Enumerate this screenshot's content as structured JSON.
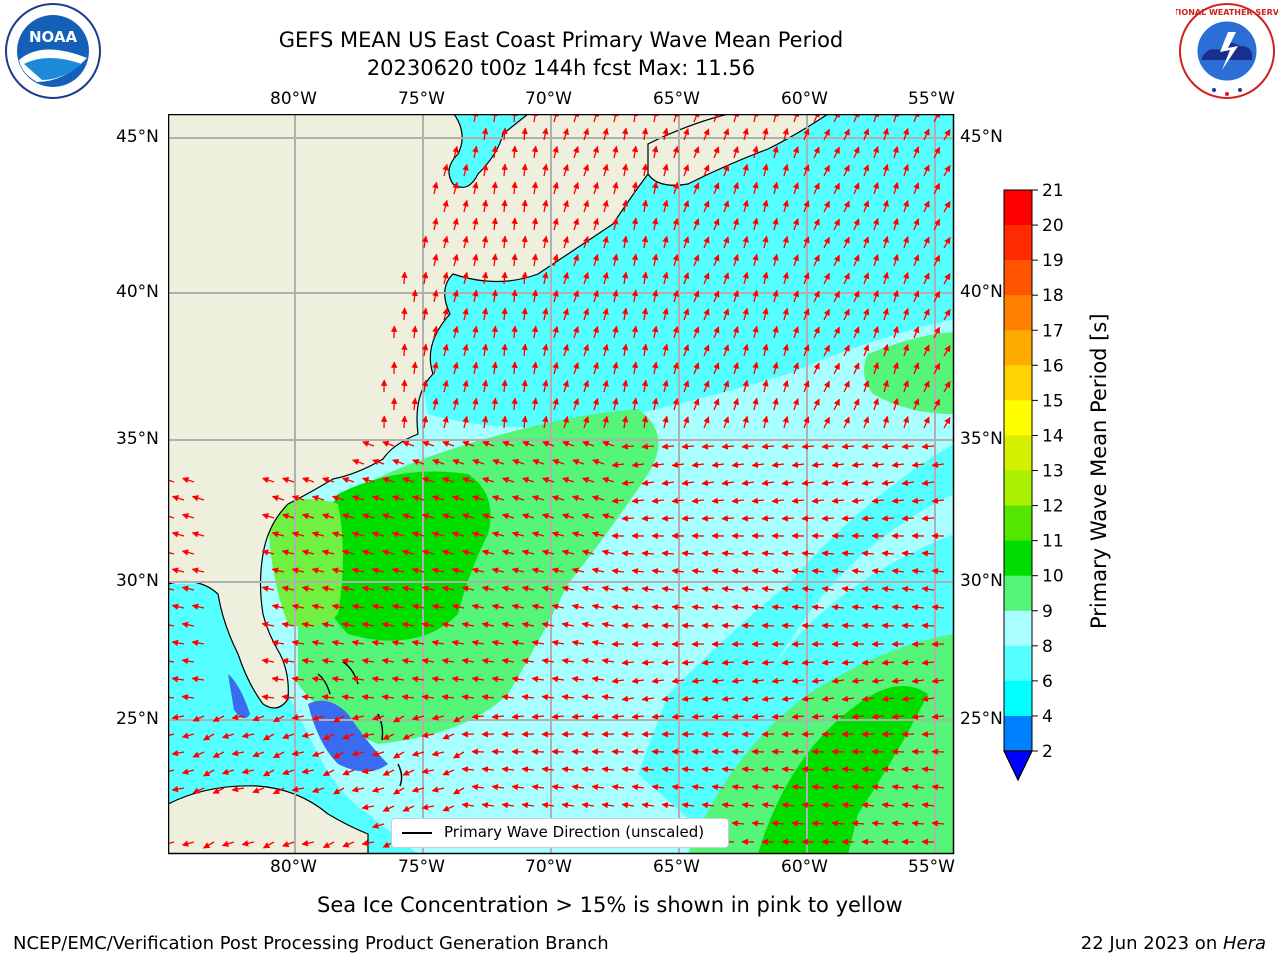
{
  "title_line1": "GEFS MEAN US East Coast Primary Wave Mean Period",
  "title_line2": "20230620 t00z 144h fcst   Max: 11.56",
  "logos": {
    "left": "NOAA",
    "right": "NATIONAL WEATHER SERVICE"
  },
  "axes": {
    "lon_labels": [
      "80°W",
      "75°W",
      "70°W",
      "65°W",
      "60°W",
      "55°W"
    ],
    "lat_labels": [
      "45°N",
      "40°N",
      "35°N",
      "30°N",
      "25°N"
    ]
  },
  "legend": {
    "label": "Primary Wave Direction (unscaled)"
  },
  "colorbar": {
    "label": "Primary Wave Mean Period [s]",
    "ticks": [
      "21",
      "20",
      "19",
      "18",
      "17",
      "16",
      "15",
      "14",
      "13",
      "12",
      "11",
      "10",
      "9",
      "8",
      "6",
      "4",
      "2"
    ],
    "colors": [
      "#ff0000",
      "#ff2a00",
      "#ff5500",
      "#ff8000",
      "#ffaa00",
      "#ffd400",
      "#ffff00",
      "#d4f000",
      "#aaf000",
      "#55e600",
      "#00dd00",
      "#55f57a",
      "#a9ffff",
      "#55ffff",
      "#00ffff",
      "#0080ff",
      "#0000ff"
    ]
  },
  "note": "Sea Ice Concentration > 15% is shown in pink to yellow",
  "footer_left": "NCEP/EMC/Verification Post Processing Product Generation Branch",
  "footer_right_date": "22 Jun 2023 on ",
  "footer_right_host": "Hera"
}
